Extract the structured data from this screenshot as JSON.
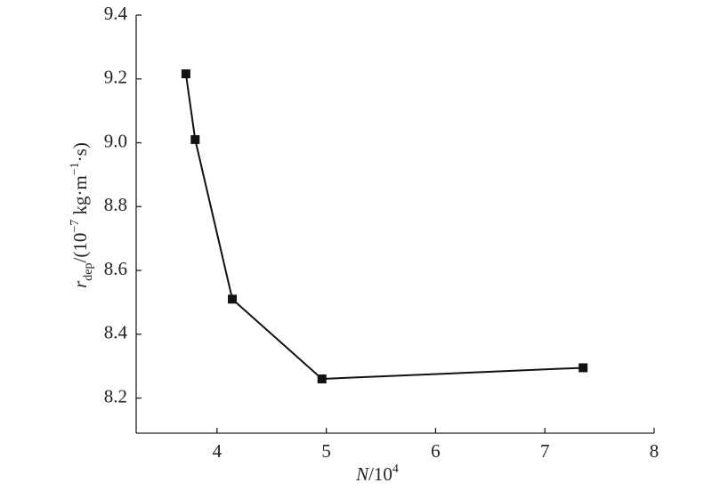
{
  "chart_data": {
    "type": "line",
    "xlabel_parts": [
      {
        "text": "N",
        "style": "italic"
      },
      {
        "text": "/10",
        "style": "normal"
      },
      {
        "text": "4",
        "style": "sup"
      }
    ],
    "ylabel_parts": [
      {
        "text": "r",
        "style": "italic"
      },
      {
        "text": "dep",
        "style": "sub"
      },
      {
        "text": "/(10",
        "style": "normal"
      },
      {
        "text": "−7",
        "style": "sup"
      },
      {
        "text": " kg·m",
        "style": "normal"
      },
      {
        "text": "−1",
        "style": "sup"
      },
      {
        "text": "·s)",
        "style": "normal"
      }
    ],
    "x": [
      3.715,
      3.8,
      4.14,
      4.96,
      7.35
    ],
    "series": [
      {
        "color": "#111111",
        "values": [
          9.216,
          9.01,
          8.51,
          8.26,
          8.295
        ]
      }
    ],
    "marker": "square",
    "xlim": [
      3.26,
      8
    ],
    "xticks": [
      4,
      5,
      6,
      7,
      8
    ],
    "ylim": [
      8.09,
      9.4
    ],
    "yticks": [
      {
        "value": 8.2,
        "label": "8.2"
      },
      {
        "value": 8.4,
        "label": "8.4"
      },
      {
        "value": 8.6,
        "label": "8.6"
      },
      {
        "value": 8.8,
        "label": "8.8"
      },
      {
        "value": 9.0,
        "label": "9.0"
      },
      {
        "value": 9.2,
        "label": "9.2"
      },
      {
        "value": 9.4,
        "label": "9.4"
      }
    ],
    "grid": false
  }
}
